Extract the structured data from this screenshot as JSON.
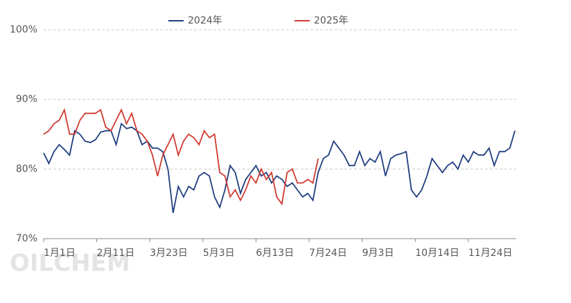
{
  "chart_data": {
    "type": "line",
    "watermark": "OILCHEM",
    "x": [
      0,
      4,
      8,
      12,
      16,
      20,
      24,
      28,
      32,
      36,
      40,
      44,
      48,
      52,
      56,
      60,
      64,
      68,
      72,
      76,
      80,
      84,
      88,
      92,
      96,
      100,
      104,
      108,
      112,
      116,
      120,
      124,
      128,
      132,
      136,
      140,
      144,
      148,
      152,
      156,
      160,
      164,
      168,
      172,
      176,
      180,
      184,
      188,
      192,
      196,
      200,
      204,
      208,
      212,
      216,
      220,
      224,
      228,
      232,
      236,
      240,
      244,
      248,
      252,
      256,
      260,
      264,
      268,
      272,
      276,
      280,
      284,
      288,
      292,
      296,
      300,
      304,
      308,
      312,
      316,
      320,
      324,
      328,
      332,
      336,
      340,
      344,
      348,
      352,
      356,
      360,
      364
    ],
    "xlim": [
      0,
      365
    ],
    "xticks": [
      {
        "value": 0,
        "label": "1月1日"
      },
      {
        "value": 41,
        "label": "2月11日"
      },
      {
        "value": 82,
        "label": "3月23日"
      },
      {
        "value": 123,
        "label": "5月3日"
      },
      {
        "value": 164,
        "label": "6月13日"
      },
      {
        "value": 205,
        "label": "7月24日"
      },
      {
        "value": 246,
        "label": "9月3日"
      },
      {
        "value": 287,
        "label": "10月14日"
      },
      {
        "value": 328,
        "label": "11月24日"
      }
    ],
    "ylim": [
      70,
      100
    ],
    "yticks": [
      {
        "value": 70,
        "label": "70%"
      },
      {
        "value": 80,
        "label": "80%"
      },
      {
        "value": 90,
        "label": "90%"
      },
      {
        "value": 100,
        "label": "100%"
      }
    ],
    "grid": true,
    "legend": "top",
    "series": [
      {
        "name": "2024年",
        "color": "#1f3d7f",
        "values": [
          82.3,
          80.8,
          82.5,
          83.5,
          82.8,
          82,
          85.5,
          85,
          84,
          83.8,
          84.2,
          85.3,
          85.5,
          85.5,
          83.5,
          86.5,
          85.8,
          86,
          85.5,
          83.5,
          84,
          83,
          83,
          82.5,
          80,
          73.7,
          77.5,
          76,
          77.5,
          77,
          79,
          79.5,
          79,
          76,
          74.5,
          77,
          80.5,
          79.5,
          76.5,
          78.5,
          79.5,
          80.5,
          79,
          79.5,
          78,
          79,
          78.5,
          77.5,
          78,
          77,
          76,
          76.5,
          75.5,
          79.5,
          81.5,
          82,
          84,
          83,
          82,
          80.5,
          80.5,
          82.5,
          80.5,
          81.5,
          81,
          82.5,
          79,
          81.5,
          82,
          82.2,
          82.5,
          77,
          76,
          77,
          79,
          81.5,
          80.5,
          79.5,
          80.5,
          81,
          80,
          82,
          81,
          82.5,
          82,
          82,
          83,
          80.5,
          82.5,
          82.5,
          83,
          85.5
        ]
      },
      {
        "name": "2025年",
        "color": "#d03a30",
        "values": [
          85,
          85.5,
          86.5,
          87,
          88.5,
          85,
          85,
          87,
          88,
          88,
          88,
          88.5,
          86,
          85.5,
          87,
          88.5,
          86.5,
          88,
          85.5,
          85,
          84,
          82,
          79,
          82,
          83.5,
          85,
          82,
          84,
          85,
          84.5,
          83.5,
          85.5,
          84.5,
          85,
          79.5,
          79,
          76,
          77,
          75.5,
          77,
          79,
          78,
          80,
          78.5,
          79.5,
          76,
          75,
          79.5,
          80,
          78,
          78,
          78.5,
          78,
          81.5,
          null,
          null,
          null,
          null,
          null,
          null,
          null,
          null,
          null,
          null,
          null,
          null,
          null,
          null,
          null,
          null,
          null,
          null,
          null,
          null,
          null,
          null,
          null,
          null,
          null,
          null,
          null,
          null,
          null,
          null,
          null,
          null,
          null,
          null,
          null,
          null,
          null,
          null
        ]
      }
    ]
  }
}
